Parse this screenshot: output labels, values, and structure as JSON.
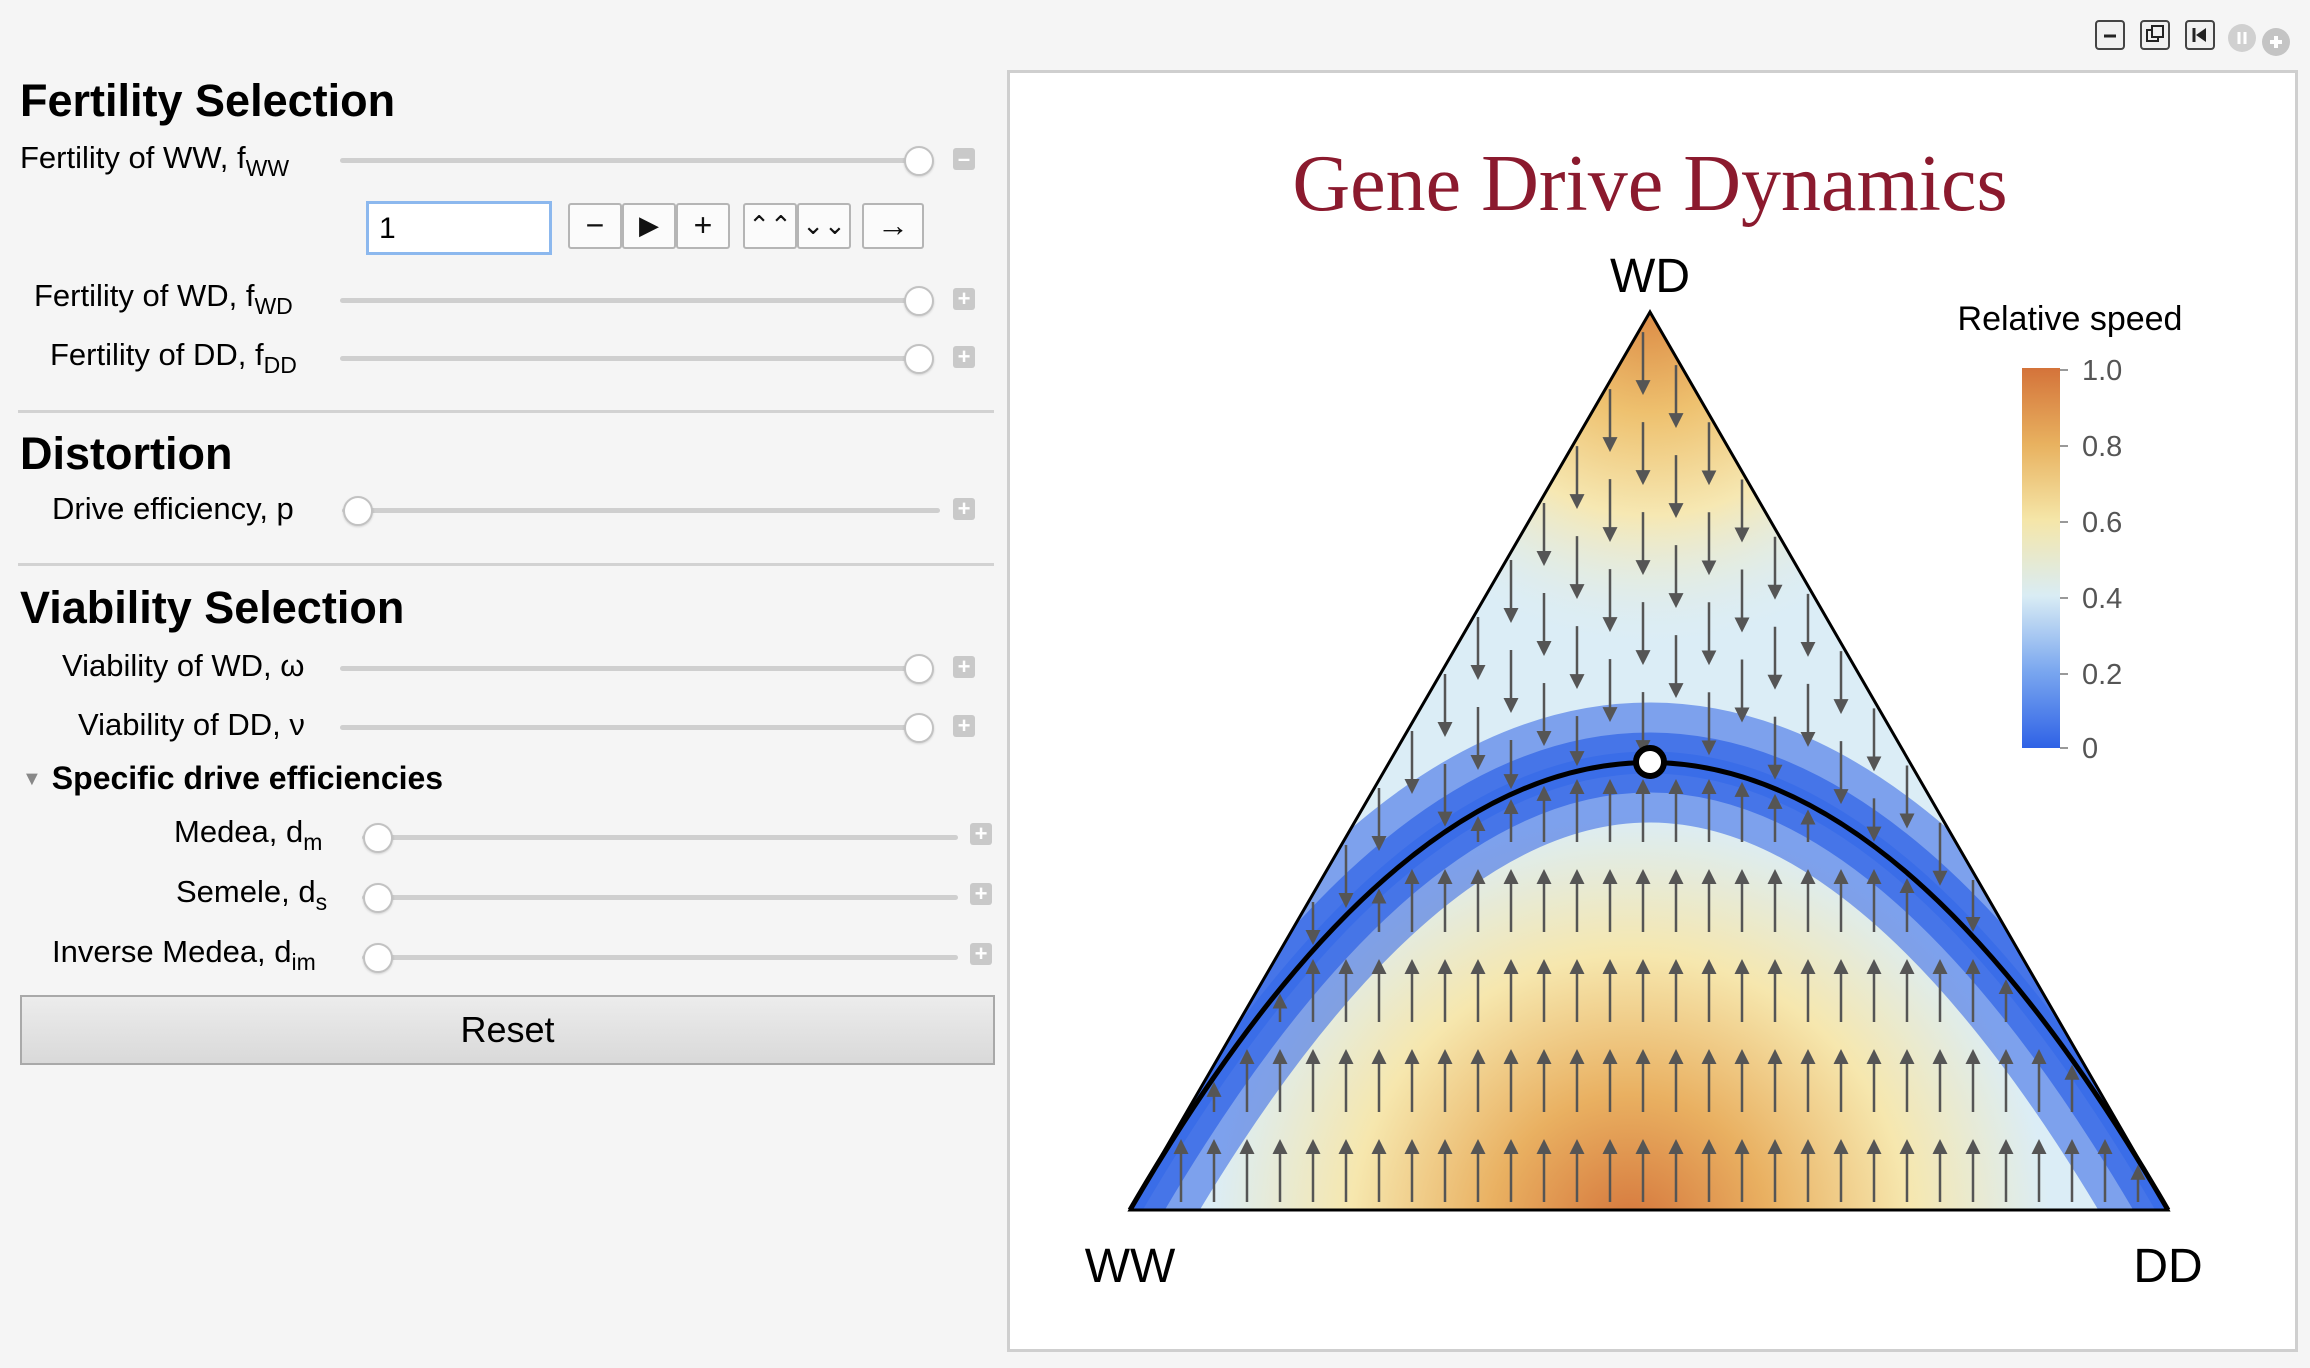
{
  "window_controls": [
    {
      "name": "minimize-icon",
      "glyph": "–"
    },
    {
      "name": "restore-icon",
      "glyph": "⧉"
    },
    {
      "name": "rewind-icon",
      "glyph": "⏮"
    },
    {
      "name": "pause-icon",
      "glyph": "⏸"
    },
    {
      "name": "add-icon",
      "glyph": "+"
    }
  ],
  "controls": {
    "fertility": {
      "title": "Fertility Selection",
      "ww_label": "Fertility of WW, f",
      "ww_sub": "WW",
      "ww_value": "1",
      "wd_label": "Fertility of WD, f",
      "wd_sub": "WD",
      "dd_label": "Fertility of DD, f",
      "dd_sub": "DD",
      "buttons": [
        "−",
        "▶",
        "+",
        "⌃⌃",
        "⌄⌄",
        "→"
      ]
    },
    "distortion": {
      "title": "Distortion",
      "p_label": "Drive efficiency, p"
    },
    "viability": {
      "title": "Viability Selection",
      "wd_label": "Viability of WD, ω",
      "dd_label": "Viability of DD, ν",
      "specific_header": "Specific drive efficiencies",
      "medea_label": "Medea, d",
      "medea_sub": "m",
      "semele_label": "Semele, d",
      "semele_sub": "s",
      "inverse_label": "Inverse Medea, d",
      "inverse_sub": "im"
    },
    "reset_label": "Reset",
    "slider_values": {
      "fertility_ww": 1,
      "fertility_wd": 1,
      "fertility_dd": 1,
      "drive_efficiency": 0,
      "viability_wd": 1,
      "viability_dd": 1,
      "medea": 0,
      "semele": 0,
      "inverse_medea": 0
    }
  },
  "plot": {
    "title": "Gene Drive Dynamics",
    "title_color": "#8b1a2e",
    "vertex_top": "WD",
    "vertex_left": "WW",
    "vertex_right": "DD",
    "legend_title": "Relative speed",
    "legend_ticks": [
      "1.0",
      "0.8",
      "0.6",
      "0.4",
      "0.2",
      "0"
    ],
    "colors": {
      "high": "#d4733a",
      "mid": "#f5e6a8",
      "low": "#2f62e6"
    }
  }
}
